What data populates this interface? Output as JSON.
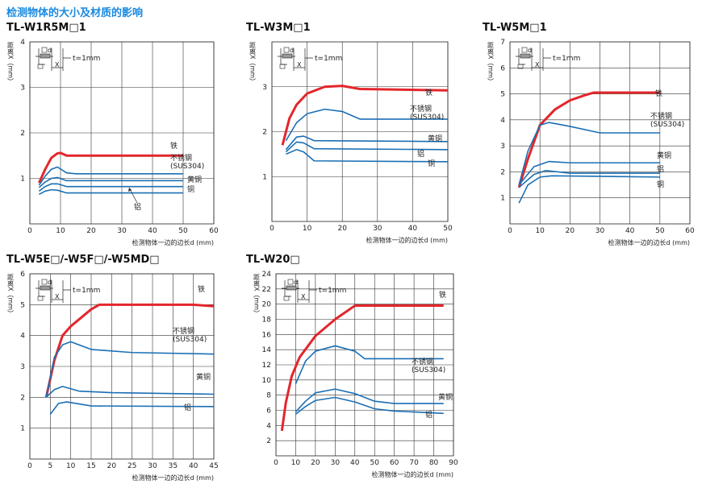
{
  "title": "检测物体的大小及材质的影响",
  "chart_data": [
    {
      "type": "line",
      "title": "TL-W1R5M□1",
      "y_label": "距离X（mm）",
      "x_label": "检测物体一边的边长d (mm)",
      "inset_labels": [
        "d",
        "X",
        "t=1mm"
      ],
      "xlim": [
        0,
        60
      ],
      "ylim": [
        0,
        4
      ],
      "xticks": [
        0,
        10,
        20,
        30,
        40,
        50,
        60
      ],
      "yticks": [
        1,
        2,
        3,
        4
      ],
      "grid": true,
      "series": [
        {
          "name": "铁",
          "color": "#e3262c",
          "x": [
            3,
            5,
            7,
            9,
            10,
            12,
            15,
            50
          ],
          "values": [
            0.9,
            1.2,
            1.45,
            1.55,
            1.56,
            1.5,
            1.5,
            1.5
          ]
        },
        {
          "name": "不锈钢\n(SUS304)",
          "color": "#1a6fb5",
          "x": [
            3,
            5,
            7,
            9,
            12,
            15,
            50
          ],
          "values": [
            0.85,
            1.05,
            1.2,
            1.25,
            1.12,
            1.1,
            1.1
          ]
        },
        {
          "name": "黄铜",
          "color": "#1a6fb5",
          "x": [
            3,
            5,
            7,
            9,
            12,
            50
          ],
          "values": [
            0.8,
            0.92,
            1.0,
            1.02,
            0.95,
            0.95
          ]
        },
        {
          "name": "铜",
          "color": "#1a6fb5",
          "x": [
            3,
            5,
            7,
            9,
            12,
            50
          ],
          "values": [
            0.72,
            0.82,
            0.88,
            0.88,
            0.82,
            0.82
          ]
        },
        {
          "name": "铝",
          "color": "#1a6fb5",
          "x": [
            3,
            5,
            7,
            9,
            12,
            50
          ],
          "values": [
            0.65,
            0.72,
            0.75,
            0.74,
            0.68,
            0.68
          ]
        }
      ]
    },
    {
      "type": "line",
      "title": "TL-W3M□1",
      "y_label": "距离X（mm）",
      "x_label": "检测物体一边的边长d (mm)",
      "inset_labels": [
        "d",
        "X",
        "t=1mm"
      ],
      "xlim": [
        0,
        50
      ],
      "ylim": [
        0,
        4
      ],
      "xticks": [
        0,
        10,
        20,
        30,
        40,
        50
      ],
      "yticks": [
        1,
        2,
        3
      ],
      "grid": true,
      "series": [
        {
          "name": "铁",
          "color": "#e3262c",
          "x": [
            3,
            5,
            7,
            10,
            15,
            20,
            25,
            50
          ],
          "values": [
            1.7,
            2.3,
            2.6,
            2.85,
            3.0,
            3.02,
            2.95,
            2.92
          ]
        },
        {
          "name": "不锈钢\n(SUS304)",
          "color": "#1a6fb5",
          "x": [
            4,
            7,
            10,
            15,
            20,
            25,
            50
          ],
          "values": [
            1.8,
            2.2,
            2.4,
            2.5,
            2.45,
            2.28,
            2.28
          ]
        },
        {
          "name": "黄铜",
          "color": "#1a6fb5",
          "x": [
            4,
            7,
            9,
            12,
            50
          ],
          "values": [
            1.6,
            1.88,
            1.9,
            1.8,
            1.78
          ]
        },
        {
          "name": "铝",
          "color": "#1a6fb5",
          "x": [
            4,
            7,
            9,
            12,
            50
          ],
          "values": [
            1.55,
            1.77,
            1.75,
            1.62,
            1.6
          ]
        },
        {
          "name": "铜",
          "color": "#1a6fb5",
          "x": [
            4,
            7,
            9,
            12,
            50
          ],
          "values": [
            1.5,
            1.6,
            1.55,
            1.35,
            1.33
          ]
        }
      ]
    },
    {
      "type": "line",
      "title": "TL-W5M□1",
      "y_label": "距离X（mm）",
      "x_label": "检测物体一边的边长d (mm)",
      "inset_labels": [
        "d",
        "X",
        "t=1mm"
      ],
      "xlim": [
        0,
        60
      ],
      "ylim": [
        0,
        7
      ],
      "xticks": [
        0,
        10,
        20,
        30,
        40,
        50,
        60
      ],
      "yticks": [
        1,
        2,
        3,
        4,
        5,
        6,
        7
      ],
      "grid": true,
      "series": [
        {
          "name": "铁",
          "color": "#e3262c",
          "x": [
            3,
            6,
            10,
            15,
            20,
            25,
            28,
            50
          ],
          "values": [
            1.4,
            2.5,
            3.8,
            4.4,
            4.75,
            4.95,
            5.05,
            5.05
          ]
        },
        {
          "name": "不锈钢\n(SUS304)",
          "color": "#1a6fb5",
          "x": [
            3,
            6,
            10,
            13,
            20,
            30,
            50
          ],
          "values": [
            1.5,
            2.8,
            3.8,
            3.9,
            3.75,
            3.5,
            3.5
          ]
        },
        {
          "name": "黄铜",
          "color": "#1a6fb5",
          "x": [
            3,
            8,
            13,
            20,
            50
          ],
          "values": [
            1.5,
            2.2,
            2.4,
            2.35,
            2.35
          ]
        },
        {
          "name": "铝",
          "color": "#1a6fb5",
          "x": [
            3,
            8,
            12,
            20,
            50
          ],
          "values": [
            1.4,
            1.9,
            2.05,
            1.95,
            1.95
          ]
        },
        {
          "name": "铜",
          "color": "#1a6fb5",
          "x": [
            3,
            6,
            10,
            14,
            50
          ],
          "values": [
            0.8,
            1.5,
            1.8,
            1.85,
            1.8
          ]
        }
      ]
    },
    {
      "type": "line",
      "title": "TL-W5E□/-W5F□/-W5MD□",
      "y_label": "距离X（mm）",
      "x_label": "检测物体一边的边长d (mm)",
      "inset_labels": [
        "d",
        "X",
        "t=1mm"
      ],
      "xlim": [
        0,
        45
      ],
      "ylim": [
        0,
        6
      ],
      "xticks": [
        0,
        5,
        10,
        15,
        20,
        25,
        30,
        35,
        40,
        45
      ],
      "yticks": [
        1,
        2,
        3,
        4,
        5,
        6
      ],
      "grid": true,
      "series": [
        {
          "name": "铁",
          "color": "#e3262c",
          "x": [
            4,
            6,
            8,
            10,
            15,
            17,
            40,
            45
          ],
          "values": [
            2.0,
            3.2,
            4.0,
            4.3,
            4.85,
            5.0,
            5.0,
            4.95
          ]
        },
        {
          "name": "不锈钢\n(SUS304)",
          "color": "#1a6fb5",
          "x": [
            4,
            6,
            8,
            10,
            15,
            25,
            45
          ],
          "values": [
            2.0,
            3.3,
            3.7,
            3.8,
            3.55,
            3.45,
            3.4
          ]
        },
        {
          "name": "黄铜",
          "color": "#1a6fb5",
          "x": [
            4,
            6,
            8,
            12,
            20,
            45
          ],
          "values": [
            2.0,
            2.25,
            2.35,
            2.2,
            2.15,
            2.1
          ]
        },
        {
          "name": "铝",
          "color": "#1a6fb5",
          "x": [
            5,
            7,
            9,
            15,
            45
          ],
          "values": [
            1.45,
            1.8,
            1.85,
            1.72,
            1.7
          ]
        }
      ]
    },
    {
      "type": "line",
      "title": "TL-W20□",
      "y_label": "距离X（mm）",
      "x_label": "检测物体一边的边长d (mm)",
      "inset_labels": [
        "d",
        "X",
        "t=1mm"
      ],
      "xlim": [
        0,
        90
      ],
      "ylim": [
        0,
        24
      ],
      "xticks": [
        0,
        10,
        20,
        30,
        40,
        50,
        60,
        70,
        80,
        90
      ],
      "yticks": [
        2,
        4,
        6,
        8,
        10,
        12,
        14,
        16,
        18,
        20,
        22,
        24
      ],
      "grid": true,
      "series": [
        {
          "name": "铁",
          "color": "#e3262c",
          "x": [
            3,
            5,
            8,
            12,
            20,
            30,
            40,
            85
          ],
          "values": [
            3.3,
            7,
            10.5,
            13,
            15.8,
            18,
            19.8,
            19.8
          ]
        },
        {
          "name": "不锈钢\n(SUS304)",
          "color": "#1a6fb5",
          "x": [
            10,
            15,
            20,
            30,
            40,
            45,
            85
          ],
          "values": [
            9.5,
            12.5,
            13.8,
            14.5,
            13.8,
            12.8,
            12.8
          ]
        },
        {
          "name": "黄铜",
          "color": "#1a6fb5",
          "x": [
            10,
            15,
            20,
            30,
            40,
            50,
            60,
            85
          ],
          "values": [
            5.8,
            7.2,
            8.3,
            8.8,
            8.2,
            7.2,
            6.9,
            6.9
          ]
        },
        {
          "name": "铝",
          "color": "#1a6fb5",
          "x": [
            10,
            15,
            20,
            30,
            40,
            50,
            60,
            85
          ],
          "values": [
            5.5,
            6.5,
            7.3,
            7.7,
            7.1,
            6.2,
            5.9,
            5.6
          ]
        }
      ]
    }
  ]
}
